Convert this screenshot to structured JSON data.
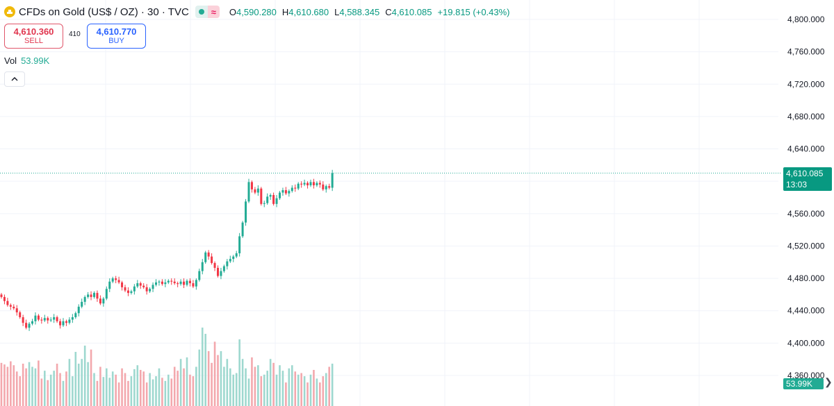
{
  "header": {
    "symbol": "CFDs on Gold (US$ / OZ) · 30 · TVC",
    "status_icon": "market-open-dot",
    "wave_icon": "≈",
    "ohlc": [
      {
        "k": "O",
        "v": "4,590.280"
      },
      {
        "k": "H",
        "v": "4,610.680"
      },
      {
        "k": "L",
        "v": "4,588.345"
      },
      {
        "k": "C",
        "v": "4,610.085"
      },
      {
        "k": "",
        "v": "+19.815 (+0.43%)"
      }
    ]
  },
  "trade": {
    "sell_price": "4,610.360",
    "sell_label": "SELL",
    "spread": "410",
    "buy_price": "4,610.770",
    "buy_label": "BUY"
  },
  "volume": {
    "label": "Vol",
    "value": "53.99K"
  },
  "price_tag": {
    "price": "4,610.085",
    "countdown": "13:03"
  },
  "vol_tag": {
    "value": "53.99K",
    "arrow": "❯"
  },
  "colors": {
    "up": "#22ab94",
    "down": "#f23645",
    "vol_up": "#9ed8cf",
    "vol_down": "#f3a8ad",
    "grid": "#f0f3fa",
    "axis_text": "#131722"
  },
  "chart_data": {
    "type": "candlestick",
    "y_ticks": [
      "4,800.000",
      "4,760.000",
      "4,720.000",
      "4,680.000",
      "4,640.000",
      "4,600.000",
      "4,560.000",
      "4,520.000",
      "4,480.000",
      "4,440.000",
      "4,400.000",
      "4,360.000"
    ],
    "y_range": [
      4348,
      4812
    ],
    "current_price": 4610.085,
    "closes": [
      4457,
      4452,
      4447,
      4445,
      4443,
      4438,
      4432,
      4425,
      4419,
      4424,
      4427,
      4434,
      4429,
      4428,
      4431,
      4428,
      4429,
      4432,
      4427,
      4422,
      4427,
      4425,
      4429,
      4432,
      4437,
      4445,
      4451,
      4457,
      4460,
      4457,
      4462,
      4455,
      4449,
      4455,
      4467,
      4476,
      4480,
      4478,
      4475,
      4469,
      4465,
      4462,
      4464,
      4470,
      4474,
      4471,
      4469,
      4464,
      4467,
      4472,
      4475,
      4476,
      4473,
      4475,
      4477,
      4476,
      4474,
      4473,
      4476,
      4472,
      4477,
      4474,
      4470,
      4478,
      4489,
      4500,
      4512,
      4507,
      4499,
      4493,
      4483,
      4489,
      4495,
      4501,
      4504,
      4507,
      4511,
      4532,
      4549,
      4575,
      4599,
      4590,
      4586,
      4591,
      4572,
      4573,
      4581,
      4583,
      4572,
      4579,
      4586,
      4589,
      4585,
      4588,
      4592,
      4591,
      4597,
      4596,
      4598,
      4595,
      4599,
      4595,
      4598,
      4596,
      4590,
      4594,
      4592,
      4610.085
    ],
    "volumes_k": [
      55,
      53,
      50,
      57,
      52,
      44,
      38,
      54,
      48,
      56,
      50,
      48,
      58,
      35,
      45,
      33,
      40,
      45,
      54,
      42,
      32,
      44,
      60,
      38,
      69,
      54,
      60,
      77,
      56,
      72,
      42,
      32,
      50,
      37,
      48,
      36,
      44,
      40,
      30,
      48,
      42,
      32,
      38,
      47,
      52,
      46,
      44,
      30,
      42,
      34,
      38,
      48,
      36,
      32,
      40,
      35,
      50,
      45,
      60,
      48,
      62,
      40,
      38,
      50,
      72,
      100,
      92,
      70,
      55,
      82,
      65,
      70,
      50,
      60,
      48,
      40,
      42,
      85,
      60,
      48,
      35,
      62,
      50,
      52,
      38,
      40,
      45,
      60,
      55,
      40,
      52,
      45,
      30,
      48,
      52,
      44,
      40,
      42,
      38,
      30,
      40,
      46,
      35,
      30,
      38,
      42,
      50,
      54
    ]
  }
}
